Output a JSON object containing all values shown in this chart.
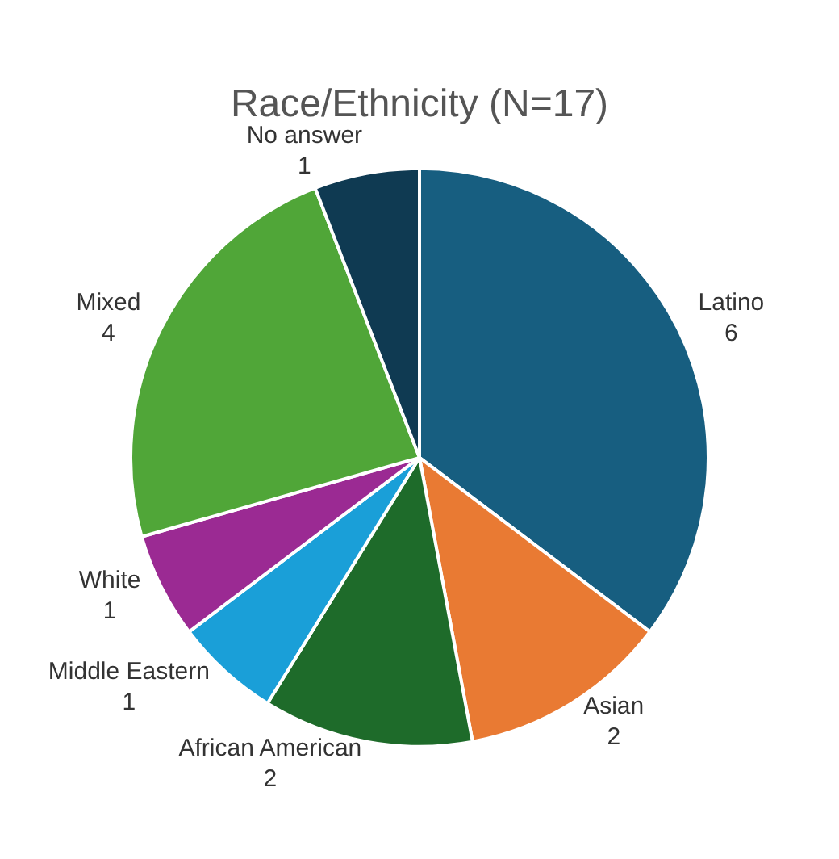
{
  "chart_data": {
    "type": "pie",
    "title": "Race/Ethnicity (N=17)",
    "categories": [
      "Latino",
      "Asian",
      "African American",
      "Middle Eastern",
      "White",
      "Mixed",
      "No answer"
    ],
    "values": [
      6,
      2,
      2,
      1,
      1,
      4,
      1
    ],
    "colors": [
      "#175e80",
      "#e97a33",
      "#1e6b2a",
      "#1a9fd8",
      "#9b2a93",
      "#50a638",
      "#0f3a52"
    ],
    "data_labels": true,
    "legend": false
  }
}
